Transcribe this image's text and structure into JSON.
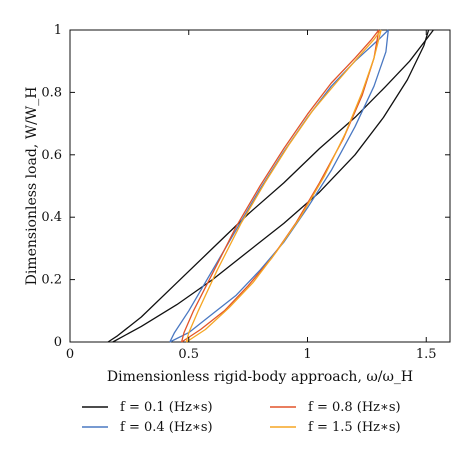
{
  "chart_data": {
    "type": "line",
    "title": "",
    "xlabel": "Dimensionless rigid-body approach, ω/ω_H",
    "ylabel": "Dimensionless load, W/W_H",
    "xlim": [
      0,
      1.6
    ],
    "ylim": [
      0,
      1
    ],
    "x_ticks": [
      "0",
      "0.5",
      "1",
      "1.5"
    ],
    "y_ticks": [
      "0",
      "0.2",
      "0.4",
      "0.6",
      "0.8",
      "1"
    ],
    "grid": false,
    "legend_position": "bottom",
    "series": [
      {
        "name": "f = 0.1 (Hz∗s)",
        "color": "#111111",
        "loading": {
          "x": [
            0.18,
            0.3,
            0.45,
            0.6,
            0.75,
            0.9,
            1.05,
            1.2,
            1.32,
            1.42,
            1.49,
            1.51
          ],
          "y": [
            0.0,
            0.05,
            0.12,
            0.2,
            0.29,
            0.38,
            0.48,
            0.6,
            0.72,
            0.84,
            0.95,
            1.0
          ]
        },
        "unloading": {
          "x": [
            1.53,
            1.5,
            1.43,
            1.33,
            1.2,
            1.05,
            0.9,
            0.75,
            0.6,
            0.45,
            0.3,
            0.2,
            0.16
          ],
          "y": [
            1.0,
            0.97,
            0.9,
            0.82,
            0.72,
            0.62,
            0.51,
            0.41,
            0.3,
            0.19,
            0.08,
            0.02,
            0.0
          ]
        }
      },
      {
        "name": "f = 0.4 (Hz∗s)",
        "color": "#4a78c2",
        "loading": {
          "x": [
            0.42,
            0.5,
            0.6,
            0.7,
            0.8,
            0.9,
            1.0,
            1.1,
            1.2,
            1.28,
            1.33,
            1.34
          ],
          "y": [
            0.0,
            0.03,
            0.09,
            0.15,
            0.23,
            0.32,
            0.43,
            0.55,
            0.69,
            0.82,
            0.93,
            1.0
          ]
        },
        "unloading": {
          "x": [
            1.34,
            1.3,
            1.2,
            1.1,
            1.0,
            0.9,
            0.8,
            0.7,
            0.6,
            0.5,
            0.44,
            0.42
          ],
          "y": [
            1.0,
            0.97,
            0.9,
            0.82,
            0.72,
            0.61,
            0.49,
            0.36,
            0.23,
            0.1,
            0.03,
            0.0
          ]
        }
      },
      {
        "name": "f = 0.8 (Hz∗s)",
        "color": "#e2542a",
        "loading": {
          "x": [
            0.47,
            0.55,
            0.65,
            0.75,
            0.85,
            0.95,
            1.05,
            1.15,
            1.23,
            1.28,
            1.3
          ],
          "y": [
            0.0,
            0.04,
            0.1,
            0.18,
            0.27,
            0.38,
            0.51,
            0.65,
            0.79,
            0.91,
            1.0
          ]
        },
        "unloading": {
          "x": [
            1.3,
            1.27,
            1.2,
            1.1,
            1.0,
            0.9,
            0.8,
            0.7,
            0.6,
            0.52,
            0.48,
            0.47
          ],
          "y": [
            1.0,
            0.97,
            0.91,
            0.83,
            0.73,
            0.62,
            0.5,
            0.37,
            0.22,
            0.1,
            0.03,
            0.0
          ]
        }
      },
      {
        "name": "f = 1.5 (Hz∗s)",
        "color": "#f5a623",
        "loading": {
          "x": [
            0.49,
            0.57,
            0.67,
            0.77,
            0.87,
            0.97,
            1.07,
            1.16,
            1.23,
            1.28,
            1.31
          ],
          "y": [
            0.0,
            0.04,
            0.11,
            0.19,
            0.29,
            0.4,
            0.53,
            0.67,
            0.8,
            0.91,
            1.0
          ]
        },
        "unloading": {
          "x": [
            1.31,
            1.28,
            1.21,
            1.12,
            1.02,
            0.92,
            0.82,
            0.72,
            0.62,
            0.54,
            0.5,
            0.49
          ],
          "y": [
            1.0,
            0.97,
            0.91,
            0.83,
            0.74,
            0.63,
            0.51,
            0.38,
            0.23,
            0.1,
            0.03,
            0.0
          ]
        }
      }
    ]
  }
}
